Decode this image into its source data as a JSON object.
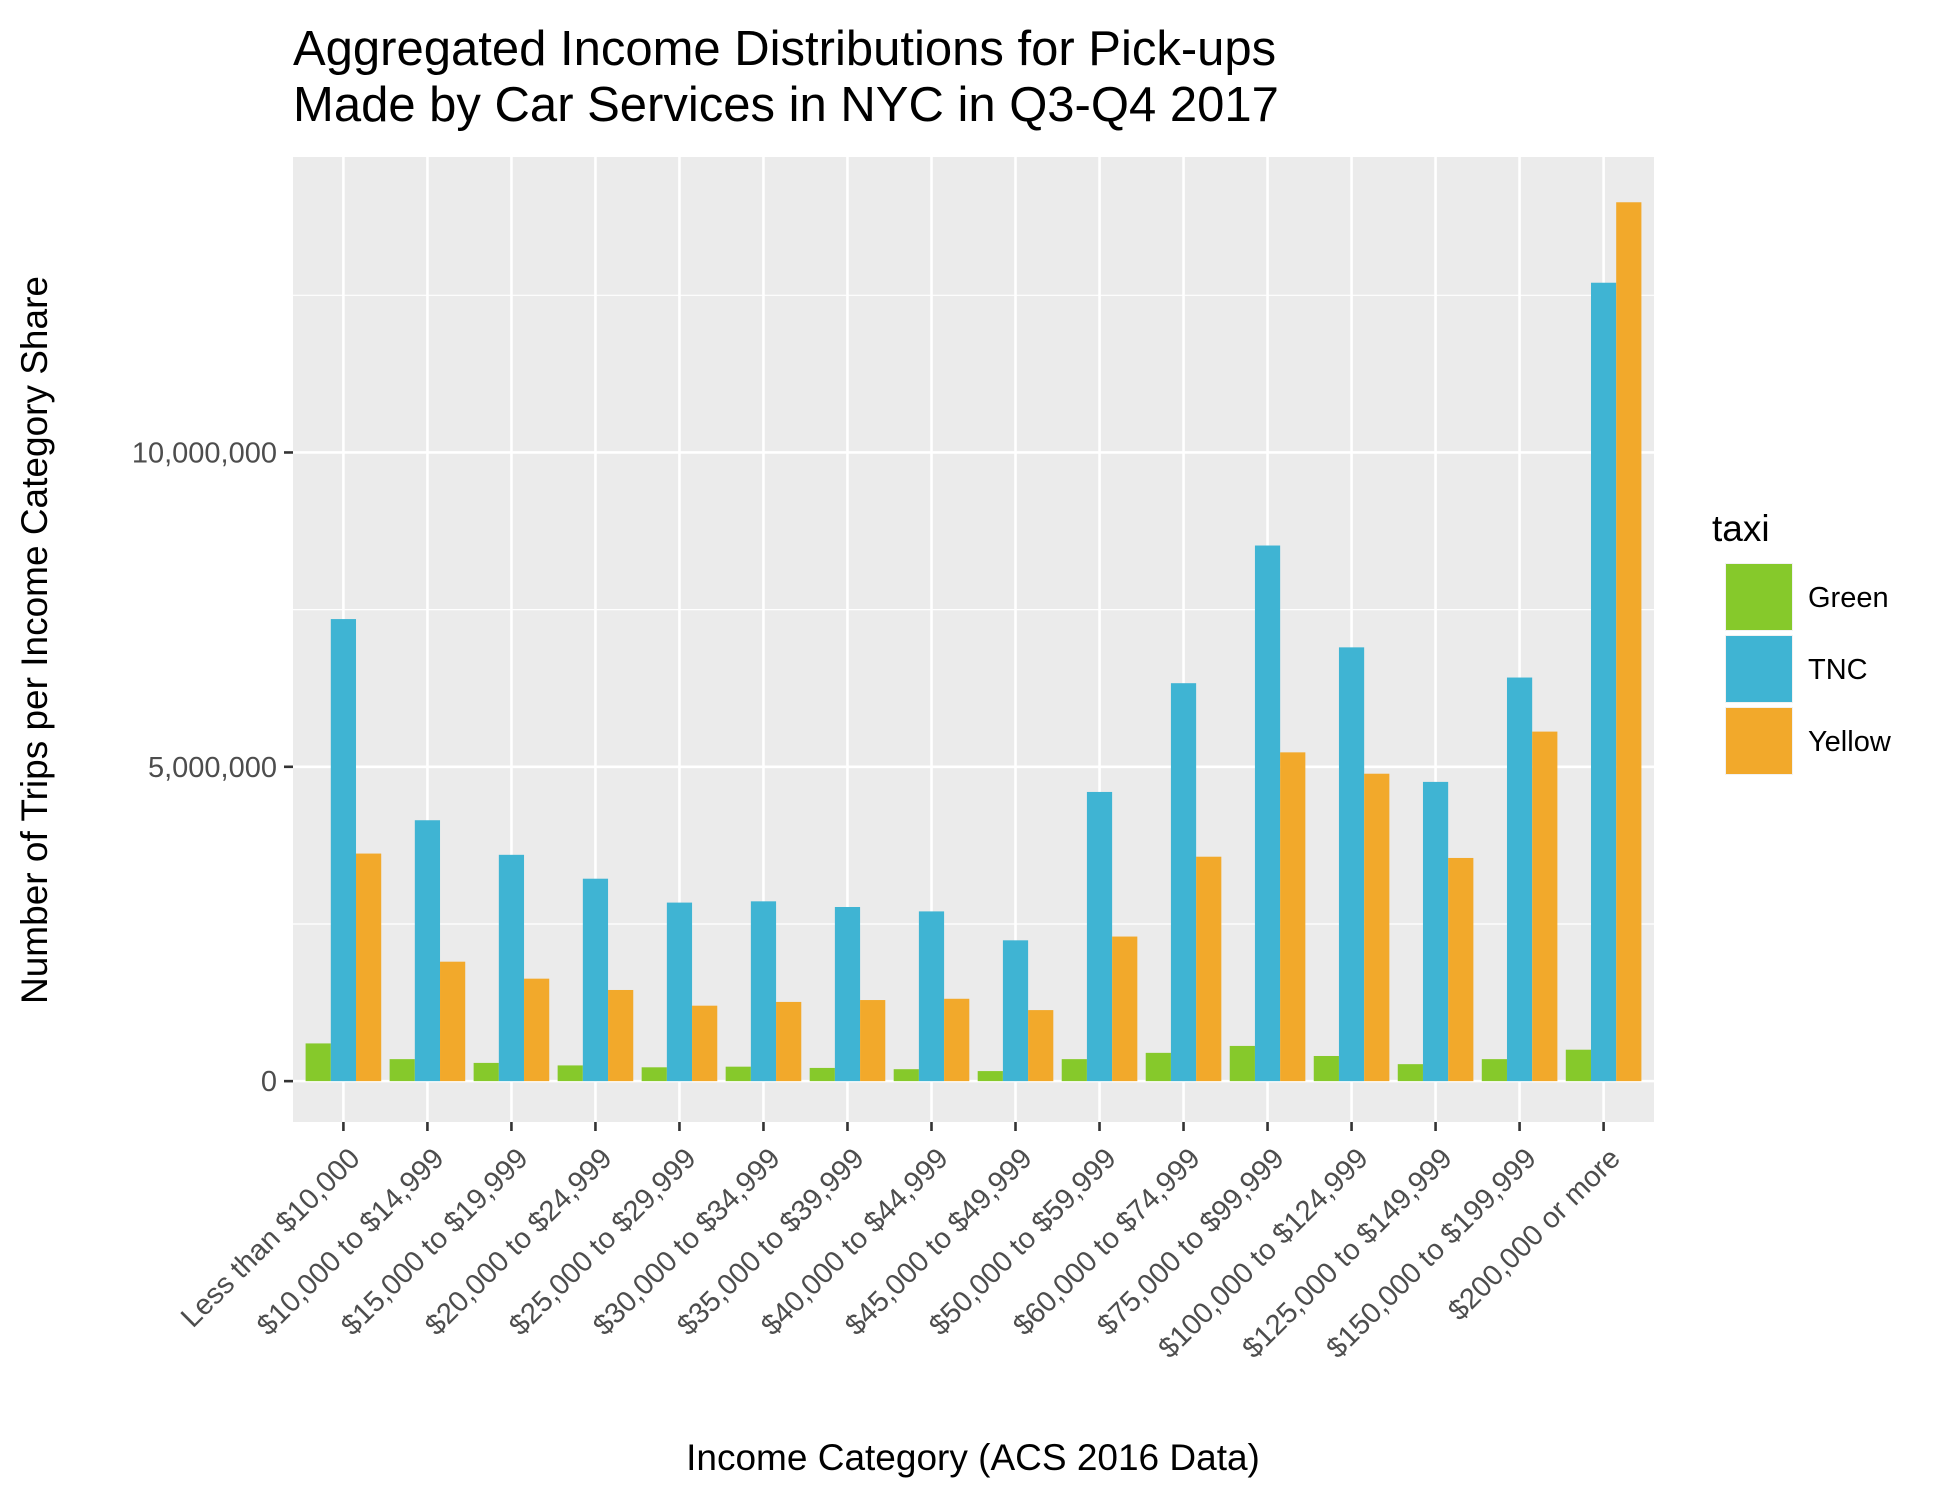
{
  "chart_data": {
    "type": "bar",
    "title_lines": [
      "Aggregated Income Distributions for Pick-ups",
      "Made by Car Services in NYC in Q3-Q4 2017"
    ],
    "xlabel": "Income Category (ACS 2016 Data)",
    "ylabel": "Number of Trips per Income Category Share",
    "ylim": [
      -650000,
      14700000
    ],
    "yticks": [
      0,
      5000000,
      10000000
    ],
    "ytick_labels": [
      "0",
      "5,000,000",
      "10,000,000"
    ],
    "grid": true,
    "categories": [
      "Less than $10,000",
      "$10,000 to $14,999",
      "$15,000 to $19,999",
      "$20,000 to $24,999",
      "$25,000 to $29,999",
      "$30,000 to $34,999",
      "$35,000 to $39,999",
      "$40,000 to $44,999",
      "$45,000 to $49,999",
      "$50,000 to $59,999",
      "$60,000 to $74,999",
      "$75,000 to $99,999",
      "$100,000 to $124,999",
      "$125,000 to $149,999",
      "$150,000 to $199,999",
      "$200,000 or more"
    ],
    "legend": {
      "title": "taxi",
      "position": "right"
    },
    "series": [
      {
        "name": "Green",
        "color": "#86c92b",
        "values": [
          600000,
          350000,
          290000,
          250000,
          220000,
          230000,
          210000,
          190000,
          160000,
          350000,
          450000,
          560000,
          400000,
          270000,
          350000,
          500000
        ]
      },
      {
        "name": "TNC",
        "color": "#3fb4d3",
        "values": [
          7350000,
          4150000,
          3600000,
          3220000,
          2840000,
          2860000,
          2770000,
          2700000,
          2240000,
          4600000,
          6330000,
          8520000,
          6900000,
          4760000,
          6420000,
          12700000
        ]
      },
      {
        "name": "Yellow",
        "color": "#f2a92b",
        "values": [
          3620000,
          1900000,
          1630000,
          1450000,
          1200000,
          1260000,
          1290000,
          1310000,
          1130000,
          2300000,
          3570000,
          5230000,
          4890000,
          3550000,
          5560000,
          13980000
        ]
      }
    ]
  }
}
